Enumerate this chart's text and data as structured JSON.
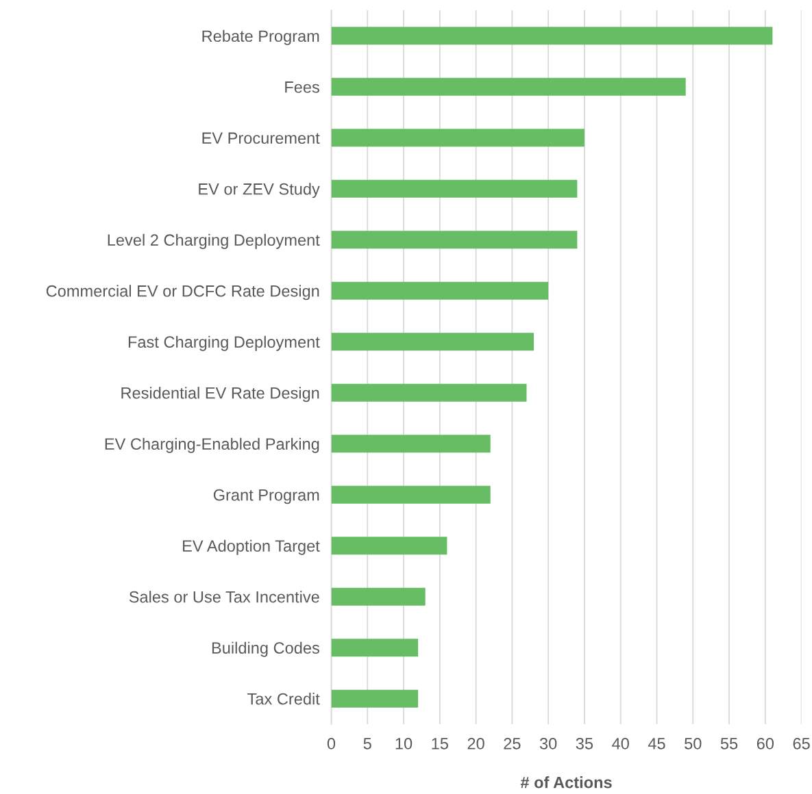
{
  "chart_data": {
    "type": "bar",
    "orientation": "horizontal",
    "xlabel": "# of Actions",
    "categories": [
      "Rebate Program",
      "Fees",
      "EV Procurement",
      "EV or ZEV Study",
      "Level 2 Charging Deployment",
      "Commercial EV or DCFC Rate Design",
      "Fast Charging Deployment",
      "Residential EV Rate Design",
      "EV Charging-Enabled Parking",
      "Grant Program",
      "EV Adoption Target",
      "Sales or Use Tax Incentive",
      "Building Codes",
      "Tax Credit"
    ],
    "values": [
      61,
      49,
      35,
      34,
      34,
      30,
      28,
      27,
      22,
      22,
      16,
      13,
      12,
      12
    ],
    "color": "#66bd63",
    "xlim": [
      0,
      65
    ],
    "xticks": [
      0,
      5,
      10,
      15,
      20,
      25,
      30,
      35,
      40,
      45,
      50,
      55,
      60,
      65
    ],
    "grid": "x",
    "legend": false
  }
}
